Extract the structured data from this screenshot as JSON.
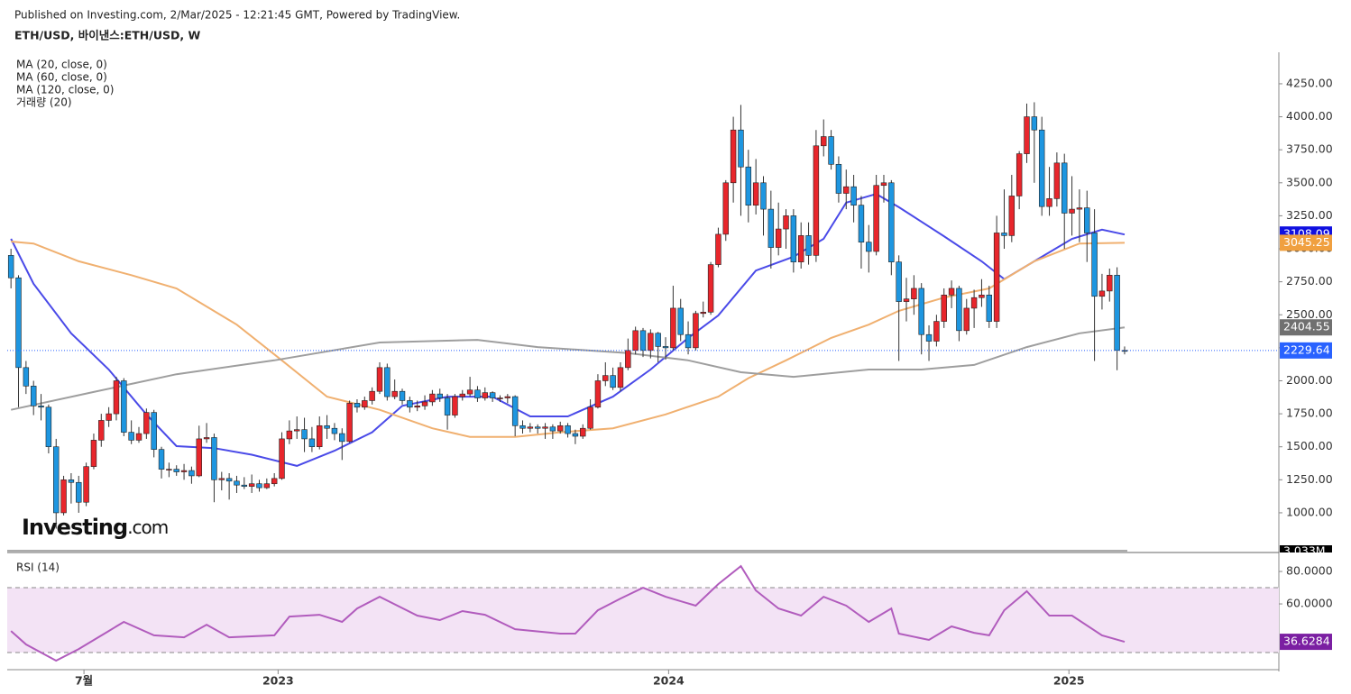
{
  "header": {
    "published": "Published on Investing.com, 2/Mar/2025 - 12:21:45 GMT, Powered by TradingView.",
    "symbol": "ETH/USD, 바이낸스:ETH/USD, W"
  },
  "logo": {
    "name": "Investing",
    "suffix": ".com"
  },
  "chart_data": [
    {
      "type": "candlestick",
      "open": [
        2950,
        2780,
        2100,
        1960,
        1810,
        1800,
        1500,
        1000,
        1250,
        1230,
        1080,
        1350,
        1550,
        1700,
        1750,
        2000,
        1610,
        1550,
        1600,
        1760,
        1480,
        1330,
        1330,
        1310,
        1320,
        1280,
        1560,
        1570,
        1250,
        1260,
        1240,
        1210,
        1200,
        1220,
        1190,
        1220,
        1260,
        1560,
        1620,
        1630,
        1560,
        1500,
        1660,
        1640,
        1600,
        1540,
        1830,
        1800,
        1850,
        1920,
        2100,
        1880,
        1920,
        1850,
        1800,
        1810,
        1840,
        1900,
        1870,
        1740,
        1880,
        1900,
        1930,
        1870,
        1910,
        1870,
        1870,
        1880,
        1660,
        1640,
        1650,
        1640,
        1650,
        1620,
        1660,
        1600,
        1580,
        1640,
        1800,
        2000,
        2040,
        1950,
        2100,
        2230,
        2380,
        2230,
        2360,
        2260,
        2250,
        2550,
        2350,
        2250,
        2510,
        2520,
        2880,
        3110,
        3500,
        3900,
        3620,
        3330,
        3500,
        3300,
        3010,
        3150,
        3250,
        2900,
        3100,
        2950,
        3780,
        3850,
        3640,
        3420,
        3470,
        3330,
        3050,
        2980,
        3480,
        3500,
        2900,
        2600,
        2620,
        2700,
        2350,
        2300,
        2450,
        2650,
        2700,
        2380,
        2550,
        2630,
        2650,
        2450,
        3120,
        3100,
        3400,
        3720,
        4000,
        3900,
        3320,
        3380,
        3650,
        3270,
        3300,
        3310,
        3120,
        2640,
        2680,
        2800,
        2230
      ],
      "high": [
        3000,
        2800,
        2150,
        2000,
        1900,
        1820,
        1560,
        1280,
        1300,
        1280,
        1380,
        1600,
        1750,
        1800,
        2030,
        2020,
        1700,
        1650,
        1790,
        1780,
        1500,
        1380,
        1360,
        1370,
        1350,
        1660,
        1680,
        1600,
        1310,
        1300,
        1280,
        1270,
        1290,
        1250,
        1260,
        1300,
        1610,
        1700,
        1730,
        1720,
        1650,
        1730,
        1740,
        1680,
        1640,
        1850,
        1860,
        1880,
        1950,
        2140,
        2130,
        2010,
        1940,
        1880,
        1850,
        1890,
        1930,
        1940,
        1900,
        1900,
        1930,
        2030,
        1960,
        1950,
        1920,
        1890,
        1900,
        1890,
        1700,
        1680,
        1670,
        1680,
        1670,
        1690,
        1680,
        1630,
        1670,
        1860,
        2050,
        2140,
        2100,
        2140,
        2320,
        2410,
        2400,
        2390,
        2370,
        2330,
        2720,
        2620,
        2450,
        2530,
        2600,
        2900,
        3160,
        3520,
        4000,
        4090,
        3750,
        3680,
        3550,
        3440,
        3350,
        3300,
        3300,
        3200,
        3200,
        3900,
        3980,
        3900,
        3700,
        3600,
        3560,
        3400,
        3180,
        3560,
        3560,
        3520,
        2950,
        2780,
        2800,
        2740,
        2420,
        2500,
        2700,
        2760,
        2720,
        2620,
        2690,
        2770,
        2720,
        3250,
        3450,
        3560,
        3740,
        4100,
        4110,
        4000,
        3620,
        3730,
        3720,
        3550,
        3450,
        3440,
        3300,
        2810,
        2850,
        2860,
        2260
      ],
      "low": [
        2700,
        1800,
        1900,
        1740,
        1700,
        1450,
        880,
        980,
        1070,
        1000,
        1050,
        1330,
        1500,
        1650,
        1700,
        1580,
        1520,
        1530,
        1560,
        1420,
        1260,
        1270,
        1280,
        1250,
        1220,
        1270,
        1530,
        1080,
        1170,
        1100,
        1150,
        1180,
        1150,
        1160,
        1180,
        1200,
        1250,
        1520,
        1560,
        1460,
        1460,
        1480,
        1560,
        1550,
        1400,
        1530,
        1760,
        1780,
        1820,
        1900,
        1850,
        1860,
        1820,
        1760,
        1770,
        1780,
        1810,
        1840,
        1630,
        1720,
        1850,
        1880,
        1840,
        1850,
        1840,
        1840,
        1830,
        1580,
        1600,
        1610,
        1600,
        1560,
        1560,
        1600,
        1570,
        1520,
        1560,
        1630,
        1790,
        1960,
        1930,
        1920,
        2080,
        2200,
        2180,
        2170,
        2140,
        2160,
        2230,
        2300,
        2200,
        2230,
        2480,
        2500,
        2860,
        3060,
        3350,
        3250,
        3200,
        3260,
        3100,
        2850,
        2950,
        3000,
        2820,
        2850,
        2880,
        2900,
        3700,
        3600,
        3350,
        3300,
        3200,
        2850,
        2820,
        2950,
        3350,
        2800,
        2150,
        2450,
        2500,
        2200,
        2150,
        2260,
        2400,
        2550,
        2300,
        2350,
        2400,
        2560,
        2400,
        2400,
        3000,
        3050,
        3300,
        3650,
        3500,
        3250,
        3250,
        3320,
        3000,
        3100,
        3050,
        2900,
        2150,
        2540,
        2600,
        2080,
        2200
      ],
      "close": [
        2780,
        2100,
        1960,
        1810,
        1800,
        1500,
        1000,
        1250,
        1230,
        1080,
        1350,
        1550,
        1700,
        1750,
        2000,
        1610,
        1550,
        1600,
        1760,
        1480,
        1330,
        1330,
        1310,
        1320,
        1280,
        1560,
        1570,
        1250,
        1260,
        1240,
        1210,
        1200,
        1220,
        1190,
        1220,
        1260,
        1560,
        1620,
        1630,
        1560,
        1500,
        1660,
        1640,
        1600,
        1540,
        1830,
        1800,
        1850,
        1920,
        2100,
        1880,
        1920,
        1850,
        1800,
        1810,
        1840,
        1900,
        1870,
        1740,
        1880,
        1900,
        1930,
        1870,
        1910,
        1870,
        1870,
        1880,
        1660,
        1640,
        1650,
        1640,
        1650,
        1620,
        1660,
        1600,
        1580,
        1640,
        1800,
        2000,
        2040,
        1950,
        2100,
        2230,
        2380,
        2230,
        2360,
        2260,
        2250,
        2550,
        2350,
        2250,
        2510,
        2520,
        2880,
        3110,
        3500,
        3900,
        3620,
        3330,
        3500,
        3300,
        3010,
        3150,
        3250,
        2900,
        3100,
        2950,
        3780,
        3850,
        3640,
        3420,
        3470,
        3330,
        3050,
        2980,
        3480,
        3500,
        2900,
        2600,
        2620,
        2700,
        2350,
        2300,
        2450,
        2650,
        2700,
        2380,
        2550,
        2630,
        2650,
        2450,
        3120,
        3100,
        3400,
        3720,
        4000,
        3900,
        3320,
        3380,
        3650,
        3270,
        3300,
        3310,
        3120,
        2640,
        2680,
        2800,
        2230,
        2229.64
      ],
      "up_color": "#e8262c",
      "down_color": "#1e96e0",
      "series": [
        {
          "name": "MA (20, close, 0)",
          "color": "#4a4ae8",
          "x": [
            0,
            3,
            8,
            13,
            18,
            22,
            27,
            32,
            38,
            43,
            48,
            52,
            58,
            64,
            69,
            74,
            80,
            85,
            90,
            94,
            99,
            104,
            108,
            111,
            115,
            118,
            124,
            129,
            132,
            136,
            141,
            145,
            148
          ],
          "values": [
            3075,
            2735,
            2360,
            2085,
            1745,
            1505,
            1490,
            1440,
            1355,
            1470,
            1610,
            1810,
            1880,
            1880,
            1730,
            1730,
            1880,
            2085,
            2325,
            2495,
            2835,
            2940,
            3075,
            3350,
            3415,
            3315,
            3095,
            2905,
            2770,
            2905,
            3075,
            3145,
            3108.09
          ],
          "label_color": "#1010e0"
        },
        {
          "name": "MA (60, close, 0)",
          "color": "#f0b070",
          "x": [
            0,
            3,
            9,
            16,
            22,
            30,
            36,
            42,
            49,
            56,
            61,
            67,
            73,
            80,
            87,
            94,
            98,
            103,
            109,
            114,
            118,
            124,
            130,
            136,
            142,
            148
          ],
          "values": [
            3055,
            3040,
            2905,
            2800,
            2700,
            2425,
            2155,
            1880,
            1780,
            1640,
            1575,
            1575,
            1610,
            1640,
            1745,
            1880,
            2020,
            2155,
            2325,
            2425,
            2530,
            2630,
            2700,
            2905,
            3040,
            3045.25
          ],
          "label_color": "#f0a040"
        },
        {
          "name": "MA (120, close, 0)",
          "color": "#9e9e9e",
          "x": [
            0,
            11,
            22,
            35,
            49,
            62,
            70,
            82,
            90,
            97,
            104,
            114,
            121,
            128,
            135,
            142,
            148
          ],
          "values": [
            1780,
            1915,
            2050,
            2155,
            2290,
            2310,
            2255,
            2210,
            2155,
            2065,
            2030,
            2085,
            2085,
            2120,
            2255,
            2360,
            2404.55
          ],
          "label_color": "#707070"
        }
      ],
      "last_color": "#2962ff",
      "volume": {
        "name": "거래량 (20)",
        "last": {
          "value": 3033000,
          "label": "3.033M"
        }
      },
      "xlim": [
        -0.5,
        168.5
      ],
      "xticks": [
        {
          "value": 9.7,
          "label": "7월"
        },
        {
          "value": 35.5,
          "label": "2023"
        },
        {
          "value": 87.4,
          "label": "2024"
        },
        {
          "value": 140.6,
          "label": "2025"
        }
      ],
      "ylim": [
        706,
        4475
      ],
      "yticks": [
        {
          "value": 1000,
          "label": "1000.00"
        },
        {
          "value": 1250,
          "label": "1250.00"
        },
        {
          "value": 1500,
          "label": "1500.00"
        },
        {
          "value": 1750,
          "label": "1750.00"
        },
        {
          "value": 2000,
          "label": "2000.00"
        },
        {
          "value": 2250,
          "label": "2250.00"
        },
        {
          "value": 2500,
          "label": "2500.00"
        },
        {
          "value": 2750,
          "label": "2750.00"
        },
        {
          "value": 3000,
          "label": "3000.00"
        },
        {
          "value": 3250,
          "label": "3250.00"
        },
        {
          "value": 3500,
          "label": "3500.00"
        },
        {
          "value": 3750,
          "label": "3750.00"
        },
        {
          "value": 4000,
          "label": "4000.00"
        },
        {
          "value": 4250,
          "label": "4250.00"
        }
      ]
    },
    {
      "type": "line",
      "title": "RSI (14)",
      "series": [
        {
          "name": "RSI (14)",
          "color": "#b15cbd",
          "label_color": "#7b1fa2",
          "x": [
            0,
            2,
            6,
            9,
            13,
            15,
            19,
            23,
            26,
            29,
            35,
            37,
            41,
            44,
            46,
            49,
            54,
            57,
            60,
            63,
            67,
            73,
            75,
            78,
            81,
            84,
            87,
            91,
            94,
            97,
            99,
            102,
            105,
            108,
            111,
            114,
            117,
            118,
            122,
            125,
            128,
            130,
            132,
            135,
            138,
            141,
            145,
            148
          ],
          "values": [
            43.3,
            35,
            25,
            32.2,
            43.3,
            48.9,
            40.6,
            39.4,
            47.2,
            39.4,
            40.6,
            52.2,
            53.3,
            48.9,
            57.2,
            64.4,
            52.8,
            50,
            55.6,
            53.3,
            44.4,
            41.7,
            41.7,
            56.1,
            63.3,
            70,
            64.4,
            58.9,
            72.2,
            83.3,
            68.3,
            57.2,
            52.8,
            64.4,
            58.9,
            48.9,
            57.2,
            41.7,
            37.8,
            46.1,
            42.2,
            40.6,
            56.1,
            67.8,
            52.8,
            52.8,
            40.6,
            36.6284
          ]
        }
      ],
      "bands": [
        30,
        70
      ],
      "band_color": "#f3e3f5",
      "ylim": [
        20,
        90.6
      ],
      "yticks": [
        {
          "value": 60,
          "label": "60.0000"
        },
        {
          "value": 80,
          "label": "80.0000"
        }
      ]
    }
  ]
}
